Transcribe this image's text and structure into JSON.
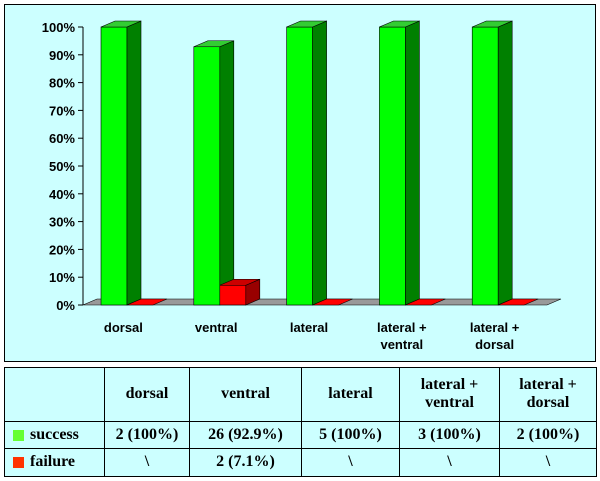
{
  "chart_data": {
    "type": "bar",
    "style": "3d-clustered-column",
    "categories": [
      "dorsal",
      "ventral",
      "lateral",
      "lateral + ventral",
      "lateral + dorsal"
    ],
    "category_lines": [
      [
        "dorsal"
      ],
      [
        "ventral"
      ],
      [
        "lateral"
      ],
      [
        "lateral +",
        "ventral"
      ],
      [
        "lateral +",
        "dorsal"
      ]
    ],
    "series": [
      {
        "name": "success",
        "color": "#00ff00",
        "dark": "#008000",
        "top": "#33cc33",
        "values": [
          100,
          92.9,
          100,
          100,
          100
        ]
      },
      {
        "name": "failure",
        "color": "#ff0000",
        "dark": "#990000",
        "top": "#cc0000",
        "values": [
          0,
          7.1,
          0,
          0,
          0
        ]
      }
    ],
    "y_ticks": [
      "0%",
      "10%",
      "20%",
      "30%",
      "40%",
      "50%",
      "60%",
      "70%",
      "80%",
      "90%",
      "100%"
    ],
    "ylim": [
      0,
      100
    ],
    "background": "#ccffff",
    "title": "",
    "xlabel": "",
    "ylabel": ""
  },
  "table": {
    "headers": [
      "dorsal",
      "ventral",
      "lateral",
      "lateral + ventral",
      "lateral + dorsal"
    ],
    "rows": [
      {
        "label": "success",
        "color": "#66ff33",
        "cells": [
          "2 (100%)",
          "26 (92.9%)",
          "5 (100%)",
          "3 (100%)",
          "2 (100%)"
        ]
      },
      {
        "label": "failure",
        "color": "#ff3300",
        "cells": [
          "\\",
          "2 (7.1%)",
          "\\",
          "\\",
          "\\"
        ]
      }
    ]
  }
}
